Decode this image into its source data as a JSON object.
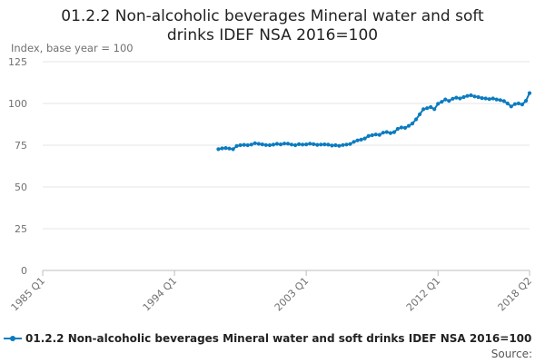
{
  "chart_data": {
    "type": "line",
    "title_line1": "01.2.2 Non-alcoholic beverages Mineral water and soft",
    "title_line2": "drinks IDEF NSA 2016=100",
    "ylabel": "Index, base year = 100",
    "ylim": [
      0,
      125
    ],
    "yticks": [
      "0",
      "25",
      "50",
      "75",
      "100",
      "125"
    ],
    "xlim": [
      1985.0,
      2018.25
    ],
    "xticks": [
      {
        "label": "1985 Q1",
        "x": 1985.0
      },
      {
        "label": "1994 Q1",
        "x": 1994.0
      },
      {
        "label": "2003 Q1",
        "x": 2003.0
      },
      {
        "label": "2012 Q1",
        "x": 2012.0
      },
      {
        "label": "2018 Q2",
        "x": 2018.25
      }
    ],
    "grid": true,
    "legend_position": "bottom-left",
    "series_color": "#0b7bbf",
    "series": [
      {
        "name": "01.2.2 Non-alcoholic beverages Mineral water and soft drinks IDEF NSA 2016=100",
        "points": [
          [
            1997.0,
            72.6
          ],
          [
            1997.25,
            73.1
          ],
          [
            1997.5,
            73.3
          ],
          [
            1997.75,
            73.0
          ],
          [
            1998.0,
            72.6
          ],
          [
            1998.25,
            74.5
          ],
          [
            1998.5,
            75.0
          ],
          [
            1998.75,
            75.2
          ],
          [
            1999.0,
            75.0
          ],
          [
            1999.25,
            75.4
          ],
          [
            1999.5,
            76.2
          ],
          [
            1999.75,
            75.8
          ],
          [
            2000.0,
            75.5
          ],
          [
            2000.25,
            75.1
          ],
          [
            2000.5,
            75.0
          ],
          [
            2000.75,
            75.3
          ],
          [
            2001.0,
            75.8
          ],
          [
            2001.25,
            75.5
          ],
          [
            2001.5,
            76.0
          ],
          [
            2001.75,
            75.9
          ],
          [
            2002.0,
            75.4
          ],
          [
            2002.25,
            75.0
          ],
          [
            2002.5,
            75.6
          ],
          [
            2002.75,
            75.4
          ],
          [
            2003.0,
            75.5
          ],
          [
            2003.25,
            75.9
          ],
          [
            2003.5,
            75.6
          ],
          [
            2003.75,
            75.2
          ],
          [
            2004.0,
            75.4
          ],
          [
            2004.25,
            75.5
          ],
          [
            2004.5,
            75.3
          ],
          [
            2004.75,
            74.8
          ],
          [
            2005.0,
            75.0
          ],
          [
            2005.25,
            74.6
          ],
          [
            2005.5,
            75.1
          ],
          [
            2005.75,
            75.4
          ],
          [
            2006.0,
            75.7
          ],
          [
            2006.25,
            77.0
          ],
          [
            2006.5,
            77.9
          ],
          [
            2006.75,
            78.3
          ],
          [
            2007.0,
            79.0
          ],
          [
            2007.25,
            80.5
          ],
          [
            2007.5,
            81.0
          ],
          [
            2007.75,
            81.4
          ],
          [
            2008.0,
            81.2
          ],
          [
            2008.25,
            82.5
          ],
          [
            2008.5,
            82.9
          ],
          [
            2008.75,
            82.3
          ],
          [
            2009.0,
            82.8
          ],
          [
            2009.25,
            84.8
          ],
          [
            2009.5,
            85.6
          ],
          [
            2009.75,
            85.4
          ],
          [
            2010.0,
            86.6
          ],
          [
            2010.25,
            88.0
          ],
          [
            2010.5,
            90.5
          ],
          [
            2010.75,
            93.5
          ],
          [
            2011.0,
            96.5
          ],
          [
            2011.25,
            97.2
          ],
          [
            2011.5,
            97.8
          ],
          [
            2011.75,
            96.6
          ],
          [
            2012.0,
            99.8
          ],
          [
            2012.25,
            101.0
          ],
          [
            2012.5,
            102.4
          ],
          [
            2012.75,
            101.5
          ],
          [
            2013.0,
            102.8
          ],
          [
            2013.25,
            103.5
          ],
          [
            2013.5,
            103.0
          ],
          [
            2013.75,
            103.8
          ],
          [
            2014.0,
            104.5
          ],
          [
            2014.25,
            104.9
          ],
          [
            2014.5,
            104.2
          ],
          [
            2014.75,
            103.8
          ],
          [
            2015.0,
            103.2
          ],
          [
            2015.25,
            103.0
          ],
          [
            2015.5,
            102.6
          ],
          [
            2015.75,
            103.0
          ],
          [
            2016.0,
            102.4
          ],
          [
            2016.25,
            102.0
          ],
          [
            2016.5,
            101.4
          ],
          [
            2016.75,
            100.0
          ],
          [
            2017.0,
            98.2
          ],
          [
            2017.25,
            99.6
          ],
          [
            2017.5,
            100.0
          ],
          [
            2017.75,
            99.4
          ],
          [
            2018.0,
            101.6
          ],
          [
            2018.25,
            106.2
          ]
        ]
      }
    ]
  },
  "source_label": "Source:"
}
